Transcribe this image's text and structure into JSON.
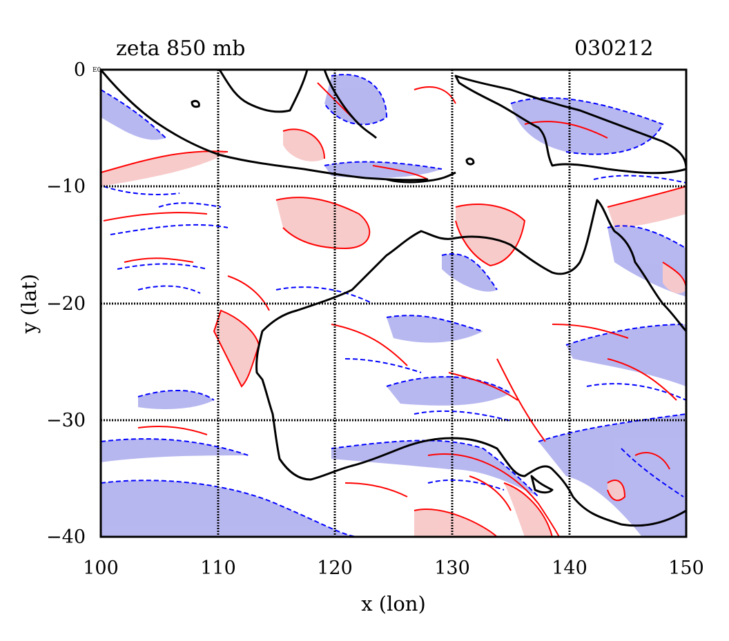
{
  "title_left": "zeta 850 mb",
  "title_right": "030212",
  "xlabel": "x (lon)",
  "ylabel": "y (lat)",
  "corner_label": "E0",
  "x_ticks": [
    "100",
    "110",
    "120",
    "130",
    "140",
    "150"
  ],
  "y_ticks": [
    "0",
    "−10",
    "−20",
    "−30",
    "−40"
  ],
  "chart_data": {
    "type": "contour map",
    "x_range": [
      100,
      150
    ],
    "y_range": [
      -40,
      0
    ],
    "x_ticks": [
      100,
      110,
      120,
      130,
      140,
      150
    ],
    "y_ticks": [
      0,
      -10,
      -20,
      -30,
      -40
    ],
    "grid": true,
    "colors": {
      "positive": "#ff0000",
      "positive_fill": "#f8c8c8",
      "negative": "#0000ff",
      "negative_fill": "#b4b4f0",
      "coastline": "#000000"
    }
  }
}
